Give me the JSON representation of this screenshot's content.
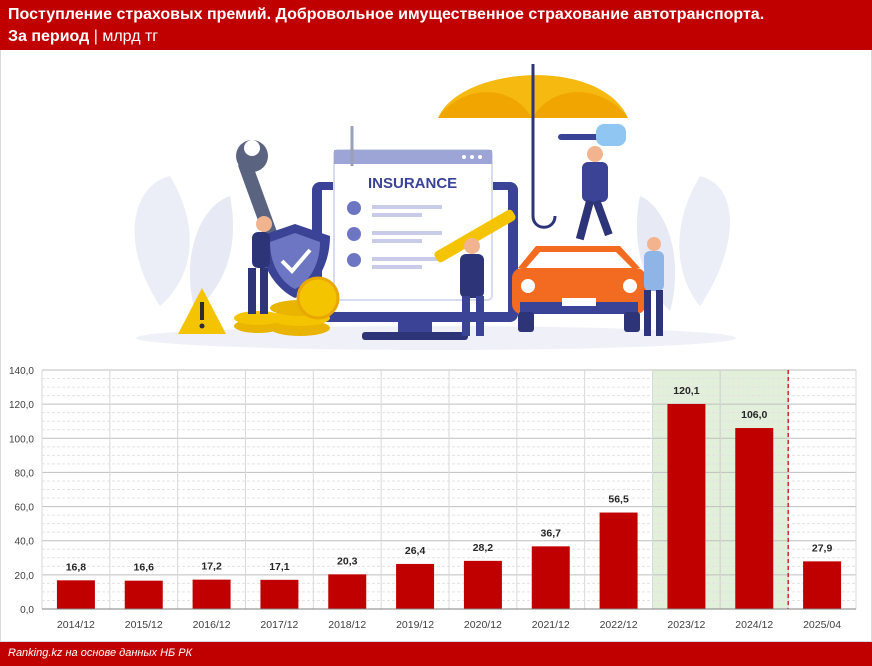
{
  "header": {
    "title": "Поступление страховых премий. Добровольное имущественное страхование автотранспорта.",
    "period_label": "За период",
    "separator": "|",
    "unit": "млрд тг"
  },
  "illustration": {
    "insurance_label": "INSURANCE"
  },
  "colors": {
    "brand_red": "#c00000",
    "bar": "#c00000",
    "highlight_fill": "#e2efda",
    "highlight_border": "#a9d08e"
  },
  "chart_data": {
    "type": "bar",
    "categories": [
      "2014/12",
      "2015/12",
      "2016/12",
      "2017/12",
      "2018/12",
      "2019/12",
      "2020/12",
      "2021/12",
      "2022/12",
      "2023/12",
      "2024/12",
      "2025/04"
    ],
    "values": [
      16.8,
      16.6,
      17.2,
      17.1,
      20.3,
      26.4,
      28.2,
      36.7,
      56.5,
      120.1,
      106.0,
      27.9
    ],
    "value_labels": [
      "16,8",
      "16,6",
      "17,2",
      "17,1",
      "20,3",
      "26,4",
      "28,2",
      "36,7",
      "56,5",
      "120,1",
      "106,0",
      "27,9"
    ],
    "yticks": [
      0,
      20,
      40,
      60,
      80,
      100,
      120,
      140
    ],
    "ytick_labels": [
      "0,0",
      "20,0",
      "40,0",
      "60,0",
      "80,0",
      "100,0",
      "120,0",
      "140,0"
    ],
    "ylim": [
      0,
      140
    ],
    "highlighted_categories": [
      "2023/12",
      "2024/12"
    ],
    "separator_before": "2025/04",
    "grid": true
  },
  "footer": {
    "source": "Ranking.kz на основе данных НБ РК"
  }
}
